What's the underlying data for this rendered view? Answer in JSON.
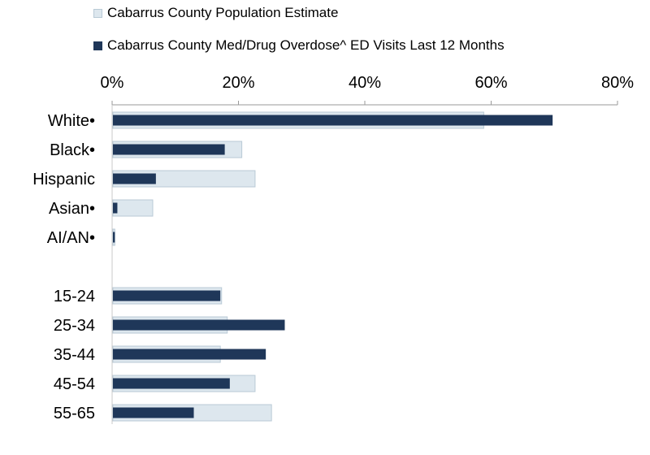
{
  "chart_data": {
    "type": "bar",
    "orientation": "horizontal",
    "categories": [
      "White•",
      "Black•",
      "Hispanic",
      "Asian•",
      "AI/AN•",
      "",
      "15-24",
      "25-34",
      "35-44",
      "45-54",
      "55-65"
    ],
    "series": [
      {
        "name": "Cabarrus County Population Estimate",
        "color": "#dde7ee",
        "border": "#b9cad6",
        "values": [
          58.7,
          20.4,
          22.5,
          6.3,
          0.3,
          null,
          17.2,
          18.1,
          17.0,
          22.5,
          25.1
        ]
      },
      {
        "name": "Cabarrus County Med/Drug Overdose^ ED Visits Last 12 Months",
        "color": "#1f3759",
        "values": [
          69.6,
          17.7,
          6.8,
          0.7,
          0.3,
          null,
          17.0,
          27.2,
          24.2,
          18.5,
          12.8
        ]
      }
    ],
    "xlim": [
      0,
      80
    ],
    "xticks": [
      "0%",
      "20%",
      "40%",
      "60%",
      "80%"
    ],
    "legend_position": "top",
    "grid": false
  }
}
